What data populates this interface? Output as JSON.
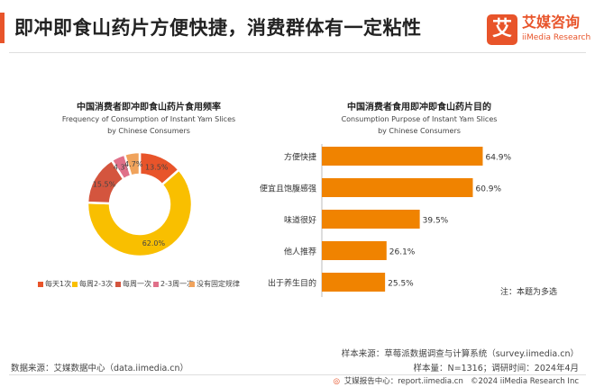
{
  "page": {
    "title": "即冲即食山药片方便快捷，消费群体有一定粘性",
    "brand_box": "艾",
    "brand_cn": "艾媒咨询",
    "brand_en": "iiMedia Research"
  },
  "footer": {
    "sample_source": "样本来源：草莓派数据调查与计算系统（survey.iimedia.cn）",
    "sample_size": "样本量：N=1316；调研时间：2024年4月",
    "data_source": "数据来源：艾媒数据中心（data.iimedia.cn）",
    "report_logo": "◎",
    "report_center": "艾媒报告中心：report.iimedia.cn",
    "copyright": "©2024  iiMedia Research  Inc"
  },
  "note": "注：本题为多选",
  "chart_data": [
    {
      "type": "pie",
      "title": "中国消费者即冲即食山药片食用频率",
      "subtitle_line1": "Frequency of Consumption of Instant Yam Slices",
      "subtitle_line2": "by Chinese Consumers",
      "categories": [
        "每天1次",
        "每周2-3次",
        "每周一次",
        "2-3周一次",
        "没有固定规律"
      ],
      "values": [
        13.5,
        62.0,
        15.5,
        4.3,
        4.7
      ],
      "labels": [
        "13.5%",
        "62.0%",
        "15.5%",
        "4.3%",
        "4.7%"
      ],
      "colors": [
        "#e8542a",
        "#f9bf00",
        "#d4553e",
        "#e07089",
        "#f0a35c"
      ],
      "legend_position": "bottom"
    },
    {
      "type": "bar",
      "orientation": "horizontal",
      "title": "中国消费者食用即冲即食山药片目的",
      "subtitle_line1": "Consumption Purpose of Instant Yam Slices",
      "subtitle_line2": "by Chinese Consumers",
      "categories": [
        "方便快捷",
        "便宜且饱腹感强",
        "味道很好",
        "他人推荐",
        "出于养生目的"
      ],
      "values": [
        64.9,
        60.9,
        39.5,
        26.1,
        25.5
      ],
      "labels": [
        "64.9%",
        "60.9%",
        "39.5%",
        "26.1%",
        "25.5%"
      ],
      "color": "#f08300",
      "xlim": [
        0,
        100
      ]
    }
  ]
}
